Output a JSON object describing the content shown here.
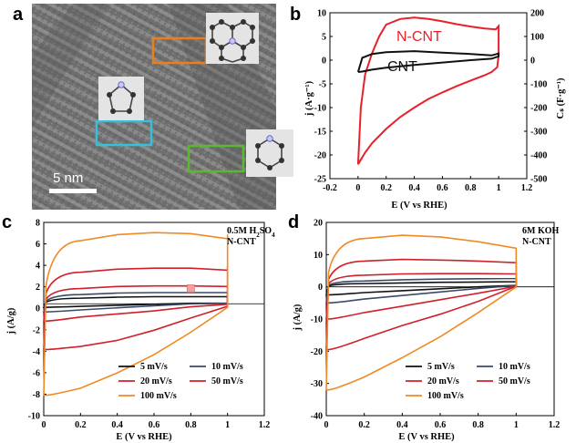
{
  "panels": {
    "a": {
      "letter": "a",
      "scale_bar_label": "5 nm"
    },
    "b": {
      "letter": "b"
    },
    "c": {
      "letter": "c"
    },
    "d": {
      "letter": "d"
    }
  },
  "colors": {
    "red": "#e8202a",
    "black": "#111111",
    "navy": "#3a4a6a",
    "crimson": "#d0202a",
    "orange": "#f08a24",
    "orange_box": "#f07d1a",
    "cyan_box": "#36c0dc",
    "green_box": "#5cb82c",
    "marker": "#f4a0a0"
  },
  "chart_data": [
    {
      "panel": "b",
      "type": "line",
      "xlabel": "E (V vs RHE)",
      "ylabel_left": "j (A·g⁻¹)",
      "ylabel_right": "Cₛ (F·g⁻¹)",
      "xlim": [
        -0.2,
        1.2
      ],
      "ylim": [
        -25,
        10
      ],
      "ylim_right": [
        -500,
        200
      ],
      "x_ticks": [
        "-0.2",
        "0",
        "0.2",
        "0.4",
        "0.6",
        "0.8",
        "1",
        "1.2"
      ],
      "y_ticks": [
        "10",
        "5",
        "0",
        "-5",
        "-10",
        "-15",
        "-20",
        "-25"
      ],
      "y_ticks_right": [
        "200",
        "100",
        "0",
        "-100",
        "-200",
        "-300",
        "-400",
        "-500"
      ],
      "series": [
        {
          "name": "N-CNT",
          "color": "#e8202a",
          "x": [
            0,
            0.02,
            0.05,
            0.1,
            0.15,
            0.2,
            0.3,
            0.4,
            0.5,
            0.6,
            0.7,
            0.8,
            0.9,
            0.98,
            1.0,
            1.0,
            0.99,
            0.95,
            0.9,
            0.8,
            0.7,
            0.6,
            0.5,
            0.4,
            0.3,
            0.2,
            0.1,
            0.05,
            0.02,
            0.0,
            0.0
          ],
          "y": [
            -22,
            -10,
            -3,
            1.5,
            5,
            7.5,
            8.7,
            9,
            8.7,
            8.2,
            7.6,
            7.1,
            6.7,
            6.5,
            7.2,
            1,
            -1.5,
            -2.5,
            -3.2,
            -4.3,
            -5.5,
            -6.8,
            -8.2,
            -10,
            -12,
            -14.5,
            -17.5,
            -19.5,
            -21,
            -22,
            -22
          ]
        },
        {
          "name": "CNT",
          "color": "#111111",
          "x": [
            0,
            0.03,
            0.1,
            0.2,
            0.4,
            0.6,
            0.8,
            0.95,
            1.0,
            1.0,
            0.95,
            0.8,
            0.6,
            0.4,
            0.2,
            0.1,
            0.03,
            0.0
          ],
          "y": [
            -2.5,
            0.5,
            1.3,
            1.7,
            1.9,
            1.6,
            1.3,
            1.0,
            1.4,
            0.8,
            0.3,
            0.0,
            -0.5,
            -1.0,
            -1.6,
            -2.0,
            -2.4,
            -2.5
          ]
        }
      ]
    },
    {
      "panel": "c",
      "type": "line",
      "xlabel": "E (V vs RHE)",
      "ylabel": "j (A/g)",
      "xlim": [
        0,
        1.2
      ],
      "ylim": [
        -11,
        8
      ],
      "x_ticks": [
        "0",
        "0.2",
        "0.4",
        "0.6",
        "0.8",
        "1",
        "1.2"
      ],
      "y_ticks": [
        "8",
        "6",
        "4",
        "2",
        "0",
        "-2",
        "-4",
        "-6",
        "-8",
        "-10"
      ],
      "annotation_line1": "0.5M H",
      "annotation_sub": "2",
      "annotation_line1b": "SO",
      "annotation_sub2": "4",
      "annotation_line2": "N-CNT",
      "series": [
        {
          "name": "5 mV/s",
          "color": "#111111",
          "top": [
            0.3,
            0.55,
            0.65,
            0.7,
            0.7,
            0.7
          ],
          "bottom": [
            -0.35,
            -0.25,
            -0.15,
            -0.05,
            0.05,
            0.1
          ],
          "end": 0.8
        },
        {
          "name": "10 mV/s",
          "color": "#3a4a6a",
          "top": [
            0.5,
            0.9,
            1.05,
            1.1,
            1.1,
            1.1
          ],
          "bottom": [
            -0.8,
            -0.6,
            -0.4,
            -0.2,
            0.0,
            0.1
          ],
          "end": 1.2
        },
        {
          "name": "20 mV/s",
          "color": "#d0202a",
          "top": [
            0.9,
            1.5,
            1.7,
            1.75,
            1.75,
            1.7
          ],
          "bottom": [
            -1.7,
            -1.3,
            -1.0,
            -0.7,
            -0.3,
            0.0
          ],
          "end": 1.8
        },
        {
          "name": "50 mV/s",
          "color": "#d0202a",
          "top": [
            2.0,
            3.1,
            3.4,
            3.5,
            3.5,
            3.3
          ],
          "bottom": [
            -4.5,
            -4.2,
            -3.6,
            -2.6,
            -1.4,
            -0.2
          ],
          "end": 3.7
        },
        {
          "name": "100 mV/s",
          "color": "#f08a24",
          "top": [
            3.5,
            6.2,
            6.8,
            7.0,
            6.9,
            6.4
          ],
          "bottom": [
            -9.0,
            -8.3,
            -6.8,
            -5.0,
            -2.8,
            -0.3
          ],
          "end": 6.8
        }
      ],
      "marker": {
        "x": 0.8,
        "y": 1.5
      }
    },
    {
      "panel": "d",
      "type": "line",
      "xlabel": "E (V vs RHE)",
      "ylabel": "j (A/g)",
      "xlim": [
        0,
        1.2
      ],
      "ylim": [
        -40,
        20
      ],
      "x_ticks": [
        "0",
        "0.2",
        "0.4",
        "0.6",
        "0.8",
        "1",
        "1.2"
      ],
      "y_ticks": [
        "20",
        "10",
        "0",
        "-10",
        "-20",
        "-30",
        "-40"
      ],
      "annotation_line1": "6M KOH",
      "annotation_line2": "N-CNT",
      "series": [
        {
          "name": "5 mV/s",
          "color": "#111111",
          "top": [
            0.5,
            1.0,
            1.2,
            1.4,
            1.5,
            1.6
          ],
          "bottom": [
            -2.5,
            -1.8,
            -1.2,
            -0.6,
            0.0,
            0.5
          ],
          "end": 1.8
        },
        {
          "name": "10 mV/s",
          "color": "#3a4a6a",
          "top": [
            1.0,
            1.8,
            2.2,
            2.4,
            2.5,
            2.6
          ],
          "bottom": [
            -5.0,
            -3.8,
            -2.7,
            -1.6,
            -0.5,
            0.5
          ],
          "end": 2.8
        },
        {
          "name": "20 mV/s",
          "color": "#d0202a",
          "top": [
            2.0,
            3.6,
            4.0,
            4.1,
            4.1,
            4.0
          ],
          "bottom": [
            -10.0,
            -8.0,
            -6.0,
            -4.0,
            -2.0,
            0.2
          ],
          "end": 4.5
        },
        {
          "name": "50 mV/s",
          "color": "#d0202a",
          "top": [
            4.5,
            8.0,
            8.5,
            8.3,
            8.0,
            7.5
          ],
          "bottom": [
            -19.5,
            -16.0,
            -12.0,
            -8.5,
            -4.5,
            0.2
          ],
          "end": 8.0
        },
        {
          "name": "100 mV/s",
          "color": "#f08a24",
          "top": [
            9.0,
            15.0,
            16.0,
            15.5,
            14.0,
            12.0
          ],
          "bottom": [
            -32.0,
            -28.0,
            -22.0,
            -15.5,
            -8.0,
            0.0
          ],
          "end": 11.5
        }
      ]
    }
  ]
}
